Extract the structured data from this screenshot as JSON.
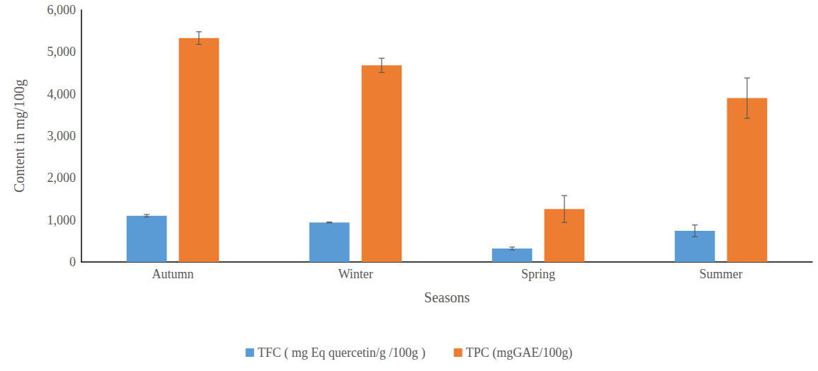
{
  "chart_data": {
    "type": "bar",
    "x_label": "Seasons",
    "y_label": "Content in mg/100g",
    "categories": [
      "Autumn",
      "Winter",
      "Spring",
      "Summer"
    ],
    "series": [
      {
        "name": "TFC ( mg Eq quercetin/g /100g )",
        "color": "#5b9bd5",
        "values": [
          1100,
          940,
          320,
          740
        ],
        "errors": [
          30,
          10,
          35,
          140
        ]
      },
      {
        "name": "TPC (mgGAE/100g)",
        "color": "#ed7d31",
        "values": [
          5330,
          4680,
          1260,
          3900
        ],
        "errors": [
          150,
          170,
          320,
          480
        ]
      }
    ],
    "ylim": [
      0,
      6000
    ],
    "yticks": [
      0,
      1000,
      2000,
      3000,
      4000,
      5000,
      6000
    ],
    "grid": false,
    "legend": "bottom"
  }
}
